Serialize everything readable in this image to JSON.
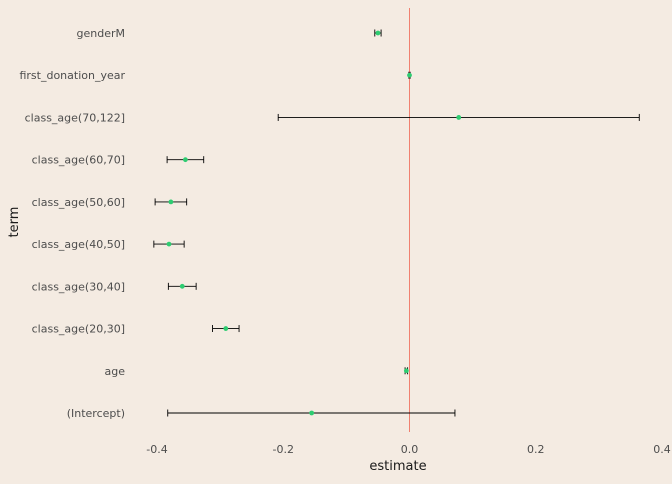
{
  "chart_data": {
    "type": "scatter",
    "subtype": "coefficient-plot-with-error-bars",
    "xlabel": "estimate",
    "ylabel": "term",
    "xlim": [
      -0.4,
      0.4
    ],
    "x_ticks": [
      "-0.4",
      "-0.2",
      "0.0",
      "0.2",
      "0.4"
    ],
    "x_tick_values": [
      -0.4,
      -0.2,
      0.0,
      0.2,
      0.4
    ],
    "grid": false,
    "legend": "none",
    "reference_line": {
      "x": 0.0,
      "color": "#f08070"
    },
    "point_color": "#2ecc71",
    "errorbar_color": "#000000",
    "terms": [
      "genderM",
      "first_donation_year",
      "class_age(70,122]",
      "class_age(60,70]",
      "class_age(50,60]",
      "class_age(40,50]",
      "class_age(30,40]",
      "class_age(20,30]",
      "age",
      "(Intercept)"
    ],
    "estimates": [
      -0.05,
      0.0,
      0.078,
      -0.355,
      -0.378,
      -0.381,
      -0.36,
      -0.291,
      -0.005,
      -0.155
    ],
    "lower": [
      -0.055,
      -0.001,
      -0.208,
      -0.384,
      -0.403,
      -0.405,
      -0.382,
      -0.312,
      -0.007,
      -0.383
    ],
    "upper": [
      -0.045,
      0.001,
      0.364,
      -0.326,
      -0.353,
      -0.357,
      -0.338,
      -0.27,
      -0.003,
      0.072
    ]
  }
}
